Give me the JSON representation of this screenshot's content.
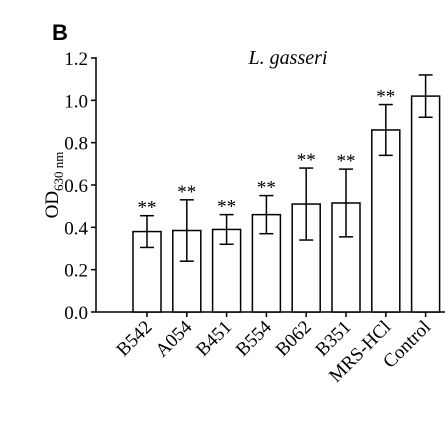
{
  "chart_data": {
    "type": "bar",
    "panel_label": "B",
    "title": "L. gasseri",
    "y_label": "OD",
    "y_label_sub": "630 nm",
    "categories": [
      "B542",
      "A054",
      "B451",
      "B554",
      "B062",
      "B351",
      "MRS-HCl",
      "Control"
    ],
    "values": [
      0.38,
      0.385,
      0.39,
      0.46,
      0.51,
      0.515,
      0.86,
      1.02
    ],
    "errors": [
      0.075,
      0.145,
      0.07,
      0.09,
      0.17,
      0.16,
      0.12,
      0.1
    ],
    "annotations": [
      "**",
      "**",
      "**",
      "**",
      "**",
      "**",
      "**",
      null
    ],
    "color": "#ffffff",
    "ylim": [
      0,
      1.2
    ],
    "yticks": [
      {
        "value": 0,
        "label": "0.0"
      },
      0.2,
      0.4,
      0.6,
      0.8,
      {
        "value": 1,
        "label": "1.0"
      },
      1.2
    ]
  }
}
